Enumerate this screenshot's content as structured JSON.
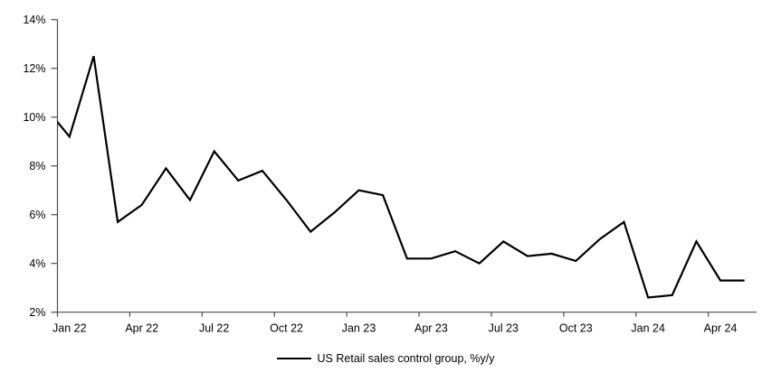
{
  "chart_data": {
    "type": "line",
    "title": "",
    "legend": "US Retail sales control group, %y/y",
    "legend_position": "bottom-center",
    "grid": false,
    "x": [
      "Dec 21",
      "Jan 22",
      "Feb 22",
      "Mar 22",
      "Apr 22",
      "May 22",
      "Jun 22",
      "Jul 22",
      "Aug 22",
      "Sep 22",
      "Oct 22",
      "Nov 22",
      "Dec 22",
      "Jan 23",
      "Feb 23",
      "Mar 23",
      "Apr 23",
      "May 23",
      "Jun 23",
      "Jul 23",
      "Aug 23",
      "Sep 23",
      "Oct 23",
      "Nov 23",
      "Dec 23",
      "Jan 24",
      "Feb 24",
      "Mar 24",
      "Apr 24",
      "May 24"
    ],
    "values": [
      10.4,
      9.2,
      12.5,
      5.7,
      6.4,
      7.9,
      6.6,
      8.6,
      7.4,
      7.8,
      6.6,
      5.3,
      6.1,
      7.0,
      6.8,
      4.2,
      4.2,
      4.5,
      4.0,
      4.9,
      4.3,
      4.4,
      4.1,
      5.0,
      5.7,
      2.6,
      2.7,
      4.9,
      3.3,
      3.3
    ],
    "first_point_clipped_at_axis": true,
    "x_tick_labels": [
      "Jan 22",
      "Apr 22",
      "Jul 22",
      "Oct 22",
      "Jan 23",
      "Apr 23",
      "Jul 23",
      "Oct 23",
      "Jan 24",
      "Apr 24"
    ],
    "y_ticks": [
      "2%",
      "4%",
      "6%",
      "8%",
      "10%",
      "12%",
      "14%"
    ],
    "ylim": [
      2,
      14
    ],
    "y_tick_step": 2,
    "colors": {
      "line": "#000000",
      "axis": "#4d4d4d",
      "text": "#000000",
      "background": "#ffffff"
    }
  }
}
